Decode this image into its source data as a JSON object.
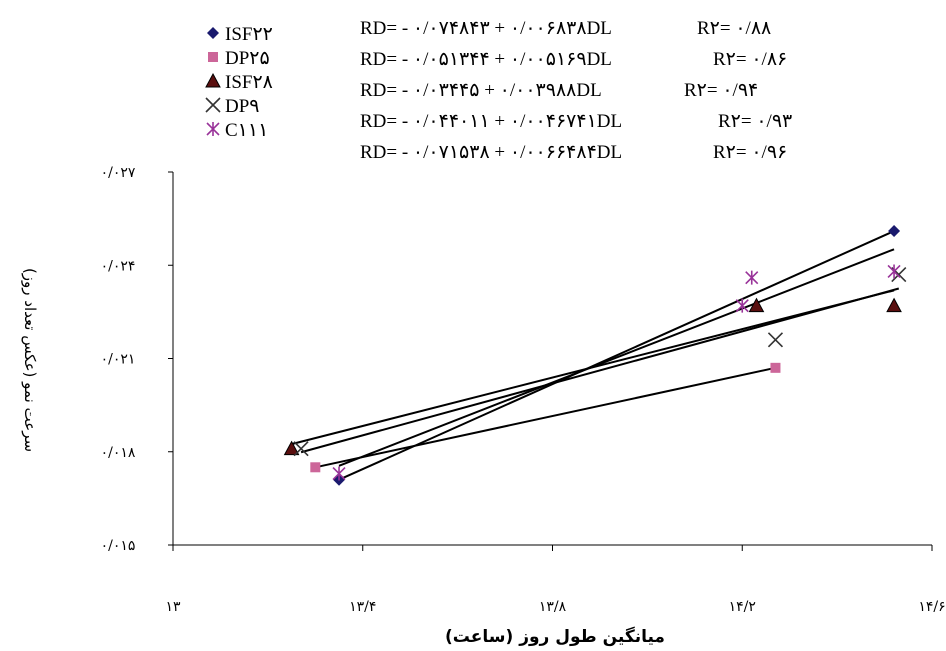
{
  "chart_data": {
    "type": "scatter",
    "title": "",
    "xlabel": "میانگین طول روز (ساعت)",
    "ylabel": "سرعت نمو (عکس تعداد روز)",
    "xlim": [
      13.0,
      14.6
    ],
    "ylim": [
      0.015,
      0.027
    ],
    "x_ticks": [
      13.0,
      13.4,
      13.8,
      14.2,
      14.6
    ],
    "x_tick_labels": [
      "۱۳",
      "۱۳/۴",
      "۱۳/۸",
      "۱۴/۲",
      "۱۴/۶"
    ],
    "y_ticks": [
      0.015,
      0.018,
      0.021,
      0.024,
      0.027
    ],
    "y_tick_labels": [
      "۰/۰۱۵",
      "۰/۰۱۸",
      "۰/۰۲۱",
      "۰/۰۲۴",
      "۰/۰۲۷"
    ],
    "legend_position": "top-left",
    "grid": false,
    "series": [
      {
        "name": "ISF۲۲",
        "marker": "diamond",
        "color": "#1a1a6e",
        "points": [
          [
            13.35,
            0.0171
          ],
          [
            14.52,
            0.0251
          ]
        ],
        "equation": "RD= - ۰/۰۷۴۸۴۳ + ۰/۰۰۶۸۳۸DL",
        "r2": "R۲= ۰/۸۸"
      },
      {
        "name": "DP۲۵",
        "marker": "square",
        "color": "#cc6699",
        "points": [
          [
            13.3,
            0.0175
          ],
          [
            14.27,
            0.0207
          ]
        ],
        "equation": "RD= - ۰/۰۵۱۳۴۴ + ۰/۰۰۵۱۶۹DL",
        "r2": "R۲= ۰/۸۶"
      },
      {
        "name": "ISF۲۸",
        "marker": "triangle",
        "color": "#5a0f0f",
        "points": [
          [
            13.25,
            0.0181
          ],
          [
            14.23,
            0.0227
          ],
          [
            14.52,
            0.0227
          ]
        ],
        "equation": "RD= - ۰/۰۳۴۴۵ + ۰/۰۰۳۹۸۸DL",
        "r2": "R۲= ۰/۹۴"
      },
      {
        "name": "DP۹",
        "marker": "x",
        "color": "#333333",
        "points": [
          [
            13.27,
            0.0181
          ],
          [
            14.27,
            0.0216
          ],
          [
            14.53,
            0.0237
          ]
        ],
        "equation": "RD= - ۰/۰۴۴۰۱۱ + ۰/۰۰۴۶۷۴۱DL",
        "r2": "R۲= ۰/۹۳"
      },
      {
        "name": "C۱۱۱",
        "marker": "asterisk",
        "color": "#993399",
        "points": [
          [
            13.35,
            0.0173
          ],
          [
            14.2,
            0.0227
          ],
          [
            14.22,
            0.0236
          ],
          [
            14.52,
            0.0238
          ]
        ],
        "equation": "RD= - ۰/۰۷۱۵۳۸ + ۰/۰۰۶۶۴۸۴DL",
        "r2": "R۲= ۰/۹۶"
      }
    ]
  }
}
